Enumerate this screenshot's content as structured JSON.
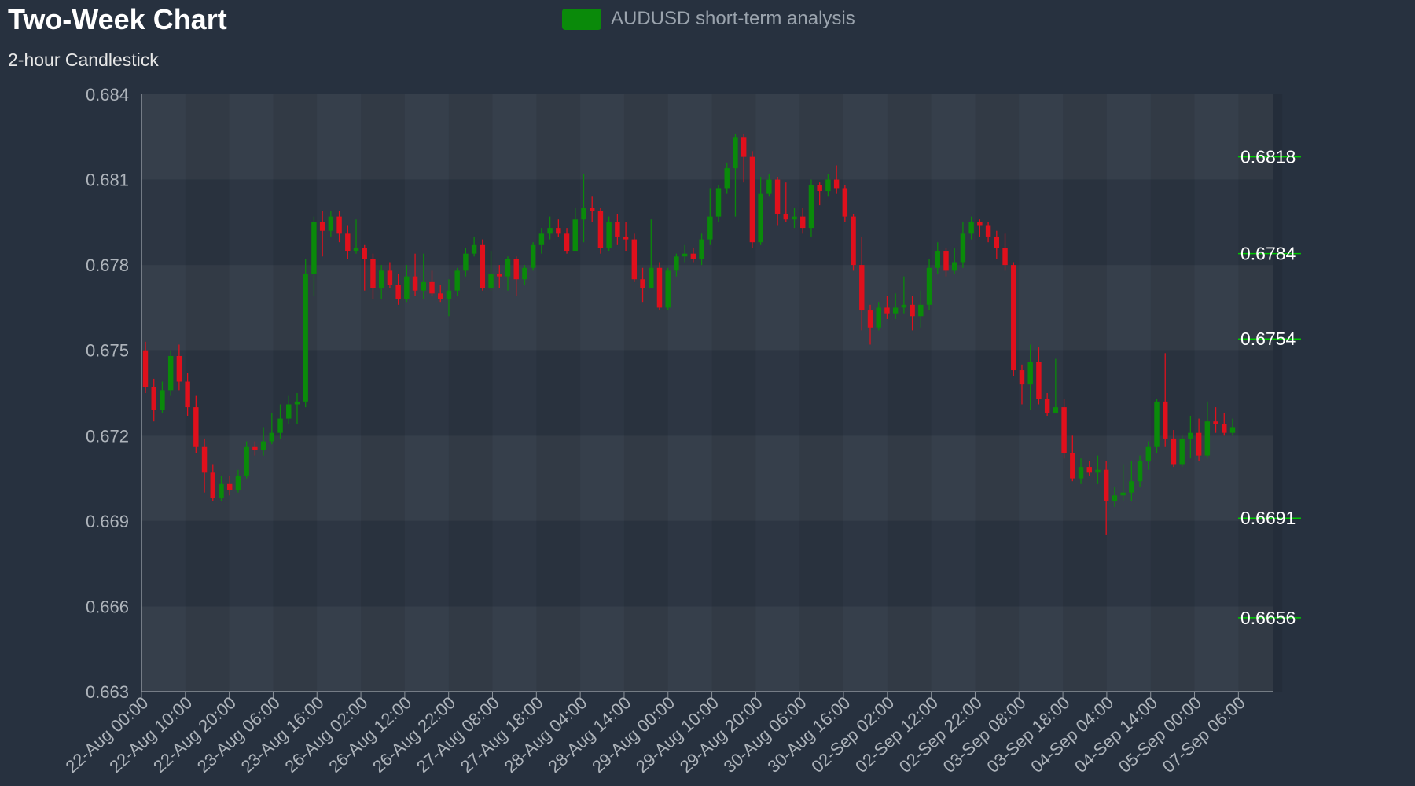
{
  "chart_data": {
    "type": "candlestick",
    "title": "Two-Week Chart",
    "subtitle": "2-hour Candlestick",
    "legend": {
      "label": "AUDUSD short-term analysis",
      "color": "#0a8a0a",
      "placement": "top-center"
    },
    "colors": {
      "up": "#0a8a0a",
      "down": "#e0101c",
      "background": "#27313f",
      "plot_band_a": "#2d3643",
      "plot_band_b": "#363f4b",
      "level_line": "#00c800"
    },
    "ylim": [
      0.663,
      0.684
    ],
    "yticks": [
      0.684,
      0.681,
      0.678,
      0.675,
      0.672,
      0.669,
      0.666,
      0.663
    ],
    "ytick_labels": [
      "0.684",
      "0.681",
      "0.678",
      "0.675",
      "0.672",
      "0.669",
      "0.666",
      "0.663"
    ],
    "xtick_labels": [
      "22-Aug 00:00",
      "22-Aug 10:00",
      "22-Aug 20:00",
      "23-Aug 06:00",
      "23-Aug 16:00",
      "26-Aug 02:00",
      "26-Aug 12:00",
      "26-Aug 22:00",
      "27-Aug 08:00",
      "27-Aug 18:00",
      "28-Aug 04:00",
      "28-Aug 14:00",
      "29-Aug 00:00",
      "29-Aug 10:00",
      "29-Aug 20:00",
      "30-Aug 06:00",
      "30-Aug 16:00",
      "02-Sep 02:00",
      "02-Sep 12:00",
      "02-Sep 22:00",
      "03-Sep 08:00",
      "03-Sep 18:00",
      "04-Sep 04:00",
      "04-Sep 14:00",
      "05-Sep 00:00",
      "07-Sep 06:00"
    ],
    "levels": [
      {
        "value": 0.6818,
        "label": "0.6818"
      },
      {
        "value": 0.6784,
        "label": "0.6784"
      },
      {
        "value": 0.6754,
        "label": "0.6754"
      },
      {
        "value": 0.6691,
        "label": "0.6691"
      },
      {
        "value": 0.6656,
        "label": "0.6656"
      }
    ],
    "candles": [
      [
        0.675,
        0.6737,
        0.6753,
        0.6735
      ],
      [
        0.6737,
        0.6729,
        0.674,
        0.6725
      ],
      [
        0.6729,
        0.6736,
        0.6739,
        0.6728
      ],
      [
        0.6736,
        0.6748,
        0.675,
        0.6734
      ],
      [
        0.6748,
        0.6739,
        0.6752,
        0.6736
      ],
      [
        0.6739,
        0.673,
        0.6742,
        0.6727
      ],
      [
        0.673,
        0.6716,
        0.6734,
        0.6714
      ],
      [
        0.6716,
        0.6707,
        0.6719,
        0.67
      ],
      [
        0.6707,
        0.6698,
        0.671,
        0.6697
      ],
      [
        0.6698,
        0.6703,
        0.6706,
        0.6697
      ],
      [
        0.6703,
        0.6701,
        0.6706,
        0.6699
      ],
      [
        0.6701,
        0.6706,
        0.6708,
        0.67
      ],
      [
        0.6706,
        0.6716,
        0.6718,
        0.6705
      ],
      [
        0.6716,
        0.6715,
        0.6718,
        0.6713
      ],
      [
        0.6715,
        0.6718,
        0.6723,
        0.6713
      ],
      [
        0.6718,
        0.6721,
        0.6728,
        0.6717
      ],
      [
        0.6721,
        0.6726,
        0.6731,
        0.6719
      ],
      [
        0.6726,
        0.6731,
        0.6734,
        0.6724
      ],
      [
        0.6731,
        0.6732,
        0.6735,
        0.6724
      ],
      [
        0.6732,
        0.6777,
        0.6782,
        0.673
      ],
      [
        0.6777,
        0.6795,
        0.6797,
        0.6769
      ],
      [
        0.6795,
        0.6792,
        0.6799,
        0.6783
      ],
      [
        0.6792,
        0.6797,
        0.6799,
        0.679
      ],
      [
        0.6797,
        0.6791,
        0.6799,
        0.6788
      ],
      [
        0.6791,
        0.6785,
        0.6794,
        0.6782
      ],
      [
        0.6785,
        0.6786,
        0.6796,
        0.6784
      ],
      [
        0.6786,
        0.6782,
        0.6787,
        0.6771
      ],
      [
        0.6782,
        0.6772,
        0.6784,
        0.6768
      ],
      [
        0.6772,
        0.6778,
        0.678,
        0.6768
      ],
      [
        0.6778,
        0.6773,
        0.6781,
        0.6772
      ],
      [
        0.6773,
        0.6768,
        0.6777,
        0.6766
      ],
      [
        0.6768,
        0.6776,
        0.678,
        0.6767
      ],
      [
        0.6776,
        0.6771,
        0.6784,
        0.6769
      ],
      [
        0.6771,
        0.6774,
        0.6784,
        0.6768
      ],
      [
        0.6774,
        0.677,
        0.6778,
        0.6769
      ],
      [
        0.677,
        0.6768,
        0.6773,
        0.6767
      ],
      [
        0.6768,
        0.6771,
        0.6775,
        0.6762
      ],
      [
        0.6771,
        0.6778,
        0.6779,
        0.6769
      ],
      [
        0.6778,
        0.6784,
        0.6786,
        0.6776
      ],
      [
        0.6784,
        0.6787,
        0.679,
        0.6783
      ],
      [
        0.6787,
        0.6772,
        0.6789,
        0.6771
      ],
      [
        0.6772,
        0.6777,
        0.6785,
        0.6771
      ],
      [
        0.6777,
        0.6776,
        0.678,
        0.6772
      ],
      [
        0.6776,
        0.6782,
        0.6783,
        0.6771
      ],
      [
        0.6782,
        0.6775,
        0.6783,
        0.6769
      ],
      [
        0.6775,
        0.6779,
        0.678,
        0.6773
      ],
      [
        0.6779,
        0.6787,
        0.6788,
        0.6778
      ],
      [
        0.6787,
        0.6791,
        0.6793,
        0.6784
      ],
      [
        0.6791,
        0.6793,
        0.6797,
        0.6789
      ],
      [
        0.6793,
        0.6791,
        0.6796,
        0.679
      ],
      [
        0.6791,
        0.6785,
        0.6793,
        0.6784
      ],
      [
        0.6785,
        0.6796,
        0.68,
        0.6786
      ],
      [
        0.6796,
        0.68,
        0.6812,
        0.6788
      ],
      [
        0.68,
        0.6799,
        0.6804,
        0.6795
      ],
      [
        0.6799,
        0.6786,
        0.68,
        0.6784
      ],
      [
        0.6786,
        0.6795,
        0.6797,
        0.6785
      ],
      [
        0.6795,
        0.679,
        0.6798,
        0.6787
      ],
      [
        0.679,
        0.6789,
        0.6795,
        0.6785
      ],
      [
        0.6789,
        0.6775,
        0.6791,
        0.6774
      ],
      [
        0.6775,
        0.6772,
        0.6779,
        0.6767
      ],
      [
        0.6772,
        0.6779,
        0.6796,
        0.6773
      ],
      [
        0.6779,
        0.6765,
        0.6781,
        0.6764
      ],
      [
        0.6765,
        0.6778,
        0.6779,
        0.6764
      ],
      [
        0.6778,
        0.6783,
        0.6784,
        0.6776
      ],
      [
        0.6783,
        0.6784,
        0.6787,
        0.6781
      ],
      [
        0.6784,
        0.6782,
        0.6786,
        0.6781
      ],
      [
        0.6782,
        0.6789,
        0.6791,
        0.678
      ],
      [
        0.6789,
        0.6797,
        0.6807,
        0.6787
      ],
      [
        0.6797,
        0.6807,
        0.6808,
        0.6795
      ],
      [
        0.6807,
        0.6814,
        0.6816,
        0.6805
      ],
      [
        0.6814,
        0.6825,
        0.6826,
        0.6797
      ],
      [
        0.6825,
        0.6818,
        0.6826,
        0.6809
      ],
      [
        0.6818,
        0.6788,
        0.682,
        0.6786
      ],
      [
        0.6788,
        0.6805,
        0.6811,
        0.6787
      ],
      [
        0.6805,
        0.681,
        0.6812,
        0.6804
      ],
      [
        0.681,
        0.6798,
        0.6811,
        0.6794
      ],
      [
        0.6798,
        0.6796,
        0.6809,
        0.6795
      ],
      [
        0.6796,
        0.6797,
        0.68,
        0.6793
      ],
      [
        0.6797,
        0.6793,
        0.68,
        0.6791
      ],
      [
        0.6793,
        0.6808,
        0.681,
        0.679
      ],
      [
        0.6808,
        0.6806,
        0.6809,
        0.6801
      ],
      [
        0.6806,
        0.681,
        0.6812,
        0.6804
      ],
      [
        0.681,
        0.6807,
        0.6815,
        0.6805
      ],
      [
        0.6807,
        0.6797,
        0.6808,
        0.6795
      ],
      [
        0.6797,
        0.678,
        0.6798,
        0.6778
      ],
      [
        0.678,
        0.6764,
        0.679,
        0.6757
      ],
      [
        0.6764,
        0.6758,
        0.6766,
        0.6752
      ],
      [
        0.6758,
        0.6765,
        0.6767,
        0.6757
      ],
      [
        0.6765,
        0.6763,
        0.6769,
        0.6761
      ],
      [
        0.6763,
        0.6765,
        0.677,
        0.6761
      ],
      [
        0.6765,
        0.6766,
        0.6776,
        0.6763
      ],
      [
        0.6766,
        0.6762,
        0.6769,
        0.6757
      ],
      [
        0.6762,
        0.6766,
        0.6771,
        0.6758
      ],
      [
        0.6766,
        0.6779,
        0.6782,
        0.6764
      ],
      [
        0.6779,
        0.6785,
        0.6788,
        0.6777
      ],
      [
        0.6785,
        0.6778,
        0.6786,
        0.6776
      ],
      [
        0.6778,
        0.6781,
        0.6786,
        0.6777
      ],
      [
        0.6781,
        0.6791,
        0.6795,
        0.6779
      ],
      [
        0.6791,
        0.6795,
        0.6797,
        0.6789
      ],
      [
        0.6795,
        0.6794,
        0.6796,
        0.679
      ],
      [
        0.6794,
        0.679,
        0.6795,
        0.6788
      ],
      [
        0.679,
        0.6786,
        0.6792,
        0.6782
      ],
      [
        0.6786,
        0.678,
        0.6791,
        0.6778
      ],
      [
        0.678,
        0.6743,
        0.6781,
        0.6741
      ],
      [
        0.6743,
        0.6738,
        0.6745,
        0.6731
      ],
      [
        0.6738,
        0.6746,
        0.6752,
        0.6729
      ],
      [
        0.6746,
        0.6733,
        0.6751,
        0.6731
      ],
      [
        0.6733,
        0.6728,
        0.6735,
        0.6727
      ],
      [
        0.6728,
        0.673,
        0.6747,
        0.6728
      ],
      [
        0.673,
        0.6714,
        0.6733,
        0.6712
      ],
      [
        0.6714,
        0.6705,
        0.672,
        0.6704
      ],
      [
        0.6705,
        0.6709,
        0.6712,
        0.6703
      ],
      [
        0.6709,
        0.6707,
        0.6711,
        0.6706
      ],
      [
        0.6707,
        0.6708,
        0.6713,
        0.6703
      ],
      [
        0.6708,
        0.6697,
        0.6711,
        0.6685
      ],
      [
        0.6697,
        0.6699,
        0.6702,
        0.6695
      ],
      [
        0.6699,
        0.67,
        0.671,
        0.6697
      ],
      [
        0.67,
        0.6704,
        0.6711,
        0.6697
      ],
      [
        0.6704,
        0.6711,
        0.6713,
        0.6702
      ],
      [
        0.6711,
        0.6716,
        0.6718,
        0.6708
      ],
      [
        0.6716,
        0.6732,
        0.6733,
        0.6714
      ],
      [
        0.6732,
        0.6719,
        0.6749,
        0.6716
      ],
      [
        0.6719,
        0.671,
        0.6722,
        0.6709
      ],
      [
        0.671,
        0.6719,
        0.672,
        0.6709
      ],
      [
        0.6719,
        0.6721,
        0.6727,
        0.6712
      ],
      [
        0.6721,
        0.6713,
        0.6726,
        0.6711
      ],
      [
        0.6713,
        0.6725,
        0.6732,
        0.6712
      ],
      [
        0.6725,
        0.6724,
        0.673,
        0.6721
      ],
      [
        0.6724,
        0.6721,
        0.6728,
        0.672
      ],
      [
        0.6721,
        0.6723,
        0.6726,
        0.672
      ]
    ]
  }
}
